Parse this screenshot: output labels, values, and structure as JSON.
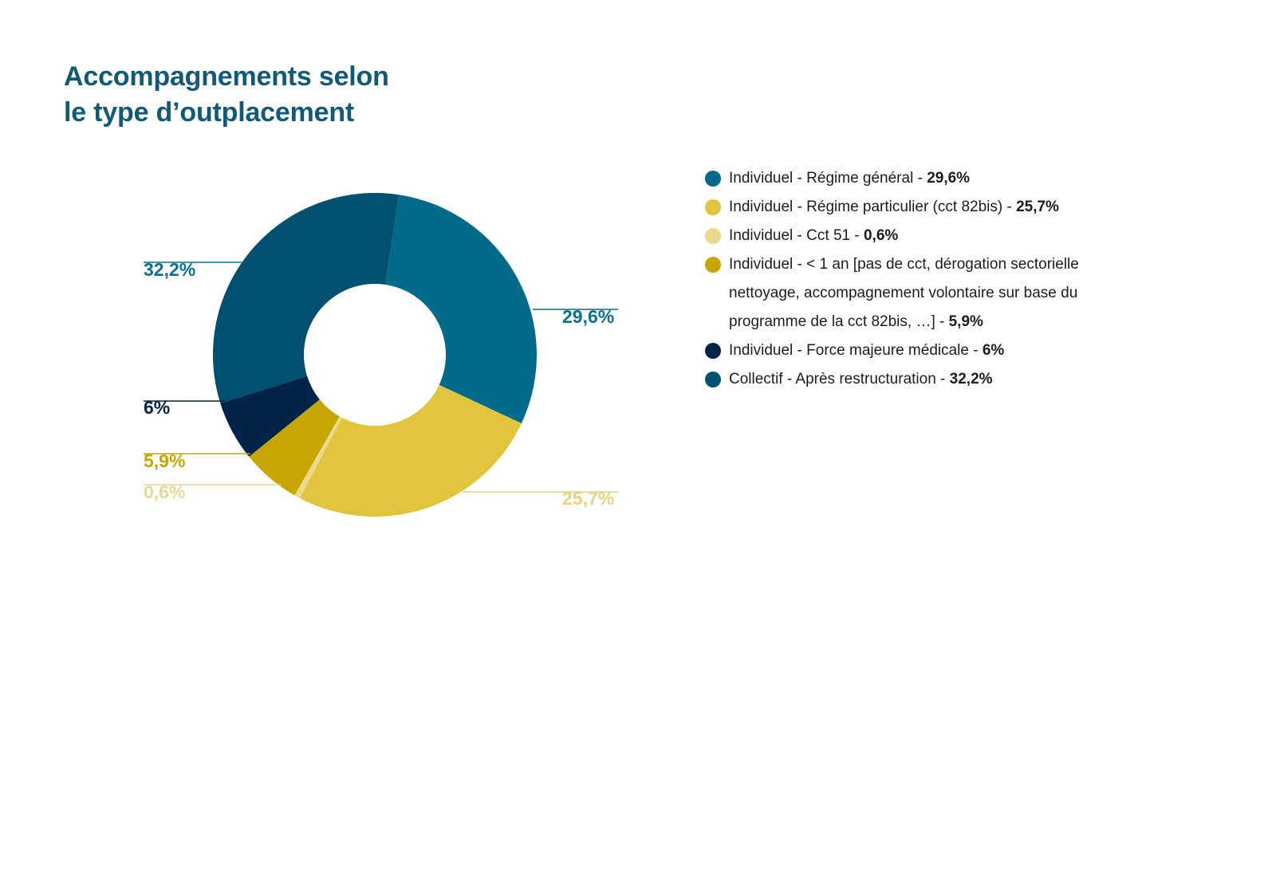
{
  "title": {
    "line1": "Accompagnements selon",
    "line2": "le type d’outplacement"
  },
  "chart_data": {
    "type": "pie",
    "donut": true,
    "title": "Accompagnements selon le type d’outplacement",
    "legend_position": "right",
    "series": [
      {
        "name": "Individuel - Régime général",
        "value": 29.6,
        "label": "29,6%",
        "color": "#006a8a"
      },
      {
        "name": "Individuel - Régime particulier (cct 82bis)",
        "value": 25.7,
        "label": "25,7%",
        "color": "#dfc43c"
      },
      {
        "name": "Individuel - Cct 51",
        "value": 0.6,
        "label": "0,6%",
        "color": "#ebd88a"
      },
      {
        "name": "Individuel - < 1 an [pas de cct, dérogation sectorielle nettoyage, accompagnement volontaire sur base du programme de la cct 82bis, …]",
        "value": 5.9,
        "label": "5,9%",
        "color": "#c6a600"
      },
      {
        "name": "Individuel - Force majeure médicale",
        "value": 6,
        "label": "6%",
        "color": "#002347"
      },
      {
        "name": "Collectif - Après restructuration",
        "value": 32.2,
        "label": "32,2%",
        "color": "#01506f"
      }
    ]
  },
  "label_colors": [
    "#0b6f8e",
    "#e6d27f",
    "#e8d896",
    "#c6a600",
    "#002347",
    "#0b6f8e"
  ],
  "legend": [
    {
      "text": "Individuel - Régime général - ",
      "value": "29,6%",
      "color": "#006a8a"
    },
    {
      "text": "Individuel - Régime particulier (cct 82bis) - ",
      "value": "25,7%",
      "color": "#dfc43c"
    },
    {
      "text": "Individuel - Cct 51 - ",
      "value": "0,6%",
      "color": "#ebd88a"
    },
    {
      "text": "Individuel - < 1 an [pas de cct, dérogation sectorielle nettoyage, accompagnement volontaire sur base du programme de la cct 82bis, …] - ",
      "value": "5,9%",
      "color": "#c6a600"
    },
    {
      "text": "Individuel - Force majeure médicale - ",
      "value": "6%",
      "color": "#002347"
    },
    {
      "text": "Collectif - Après restructuration - ",
      "value": "32,2%",
      "color": "#01506f"
    }
  ]
}
